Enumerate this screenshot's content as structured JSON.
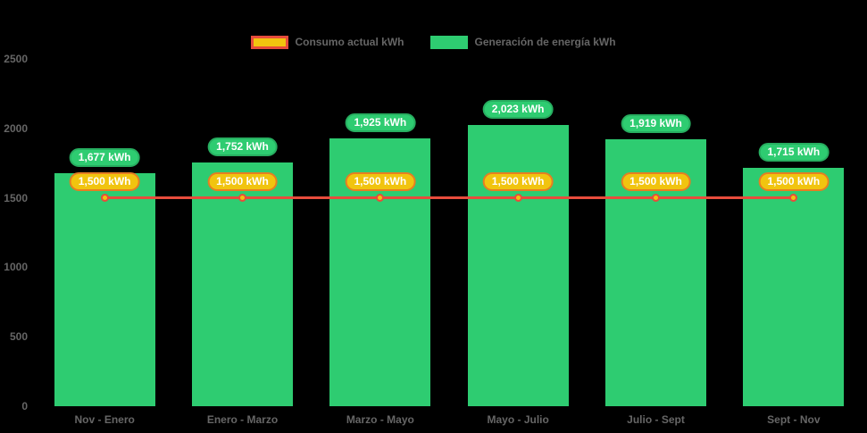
{
  "legend": [
    {
      "label": "Consumo actual kWh",
      "swatch_fill": "#f1c40f",
      "swatch_border": "#e74c3c"
    },
    {
      "label": "Generación de energía kWh",
      "swatch_fill": "#2ecc71",
      "swatch_border": "#2ecc71"
    }
  ],
  "chart_data": {
    "type": "bar",
    "categories": [
      "Nov - Enero",
      "Enero - Marzo",
      "Marzo - Mayo",
      "Mayo - Julio",
      "Julio - Sept",
      "Sept - Nov"
    ],
    "series": [
      {
        "name": "Generación de energía kWh",
        "type": "bar",
        "color": "#2ecc71",
        "label_border": "#27ae60",
        "values": [
          1677,
          1752,
          1925,
          2023,
          1919,
          1715
        ],
        "labels": [
          "1,677 kWh",
          "1,752 kWh",
          "1,925 kWh",
          "2,023 kWh",
          "1,919 kWh",
          "1,715 kWh"
        ]
      },
      {
        "name": "Consumo actual kWh",
        "type": "line",
        "color": "#e74c3c",
        "point_color": "#f1c40f",
        "label_fill": "#f1c40f",
        "label_border": "#e67e22",
        "values": [
          1500,
          1500,
          1500,
          1500,
          1500,
          1500
        ],
        "labels": [
          "1,500 kWh",
          "1,500 kWh",
          "1,500 kWh",
          "1,500 kWh",
          "1,500 kWh",
          "1,500 kWh"
        ]
      }
    ],
    "title": "",
    "xlabel": "",
    "ylabel": "",
    "ylim": [
      0,
      2500
    ],
    "yticks": [
      {
        "v": 0,
        "label": "0"
      },
      {
        "v": 500,
        "label": "500"
      },
      {
        "v": 1000,
        "label": "1000"
      },
      {
        "v": 1500,
        "label": "1500"
      },
      {
        "v": 2000,
        "label": "2000"
      },
      {
        "v": 2500,
        "label": "2500"
      }
    ],
    "grid": false,
    "legend_position": "top",
    "background": "#000000",
    "axis_text_color": "#666666"
  }
}
